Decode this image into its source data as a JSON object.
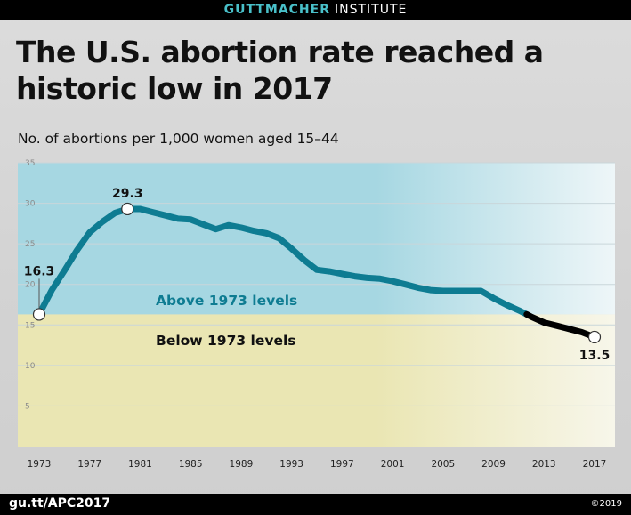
{
  "header": {
    "brand": "GUTTMACHER",
    "brand_suffix": "INSTITUTE"
  },
  "footer": {
    "url": "gu.tt/APC2017",
    "copyright": "©2019"
  },
  "colors": {
    "above_band": "#a6d7e2",
    "below_band": "#eae6b3",
    "line_above": "#0e7c92",
    "line_below": "#000000"
  },
  "chart_data": {
    "type": "line",
    "title": "The U.S. abortion rate reached a historic low in 2017",
    "subtitle": "No. of abortions per 1,000 women aged 15–44",
    "xlabel": "",
    "ylabel": "",
    "xlim": [
      1973,
      2017
    ],
    "ylim": [
      0,
      35
    ],
    "x_ticks": [
      1973,
      1977,
      1981,
      1985,
      1989,
      1993,
      1997,
      2001,
      2005,
      2009,
      2013,
      2017
    ],
    "y_ticks": [
      5,
      10,
      15,
      20,
      25,
      30,
      35
    ],
    "grid": true,
    "reference_value": 16.3,
    "regions": {
      "above_label": "Above 1973 levels",
      "below_label": "Below 1973 levels"
    },
    "series": [
      {
        "x": [
          1973,
          1974,
          1975,
          1976,
          1977,
          1978,
          1979,
          1980,
          1981,
          1982,
          1983,
          1984,
          1985,
          1986,
          1987,
          1988,
          1989,
          1990,
          1991,
          1992,
          1993,
          1994,
          1995,
          1996,
          1997,
          1998,
          1999,
          2000,
          2001,
          2002,
          2003,
          2004,
          2005,
          2006,
          2007,
          2008,
          2009,
          2010,
          2011,
          2012,
          2013,
          2014,
          2015,
          2016,
          2017
        ],
        "values": [
          16.3,
          19.3,
          21.7,
          24.2,
          26.4,
          27.7,
          28.8,
          29.3,
          29.3,
          28.9,
          28.5,
          28.1,
          28.0,
          27.4,
          26.8,
          27.3,
          27.0,
          26.6,
          26.3,
          25.7,
          24.4,
          23.0,
          21.8,
          21.6,
          21.3,
          21.0,
          20.8,
          20.7,
          20.4,
          20.0,
          19.6,
          19.3,
          19.2,
          19.2,
          19.2,
          19.2,
          18.3,
          17.5,
          16.8,
          16.0,
          15.3,
          14.9,
          14.5,
          14.1,
          13.5
        ]
      }
    ],
    "annotations": [
      {
        "x": 1973,
        "y": 16.3,
        "label": "16.3"
      },
      {
        "x": 1980,
        "y": 29.3,
        "label": "29.3"
      },
      {
        "x": 2017,
        "y": 13.5,
        "label": "13.5"
      }
    ]
  }
}
